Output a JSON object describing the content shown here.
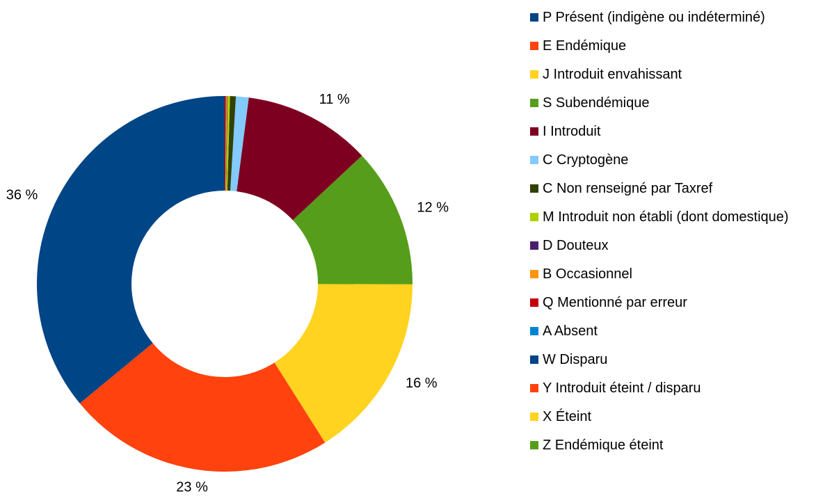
{
  "chart_data": {
    "type": "donut",
    "categories": [
      "P Présent (indigène ou indéterminé)",
      "E Endémique",
      "J Introduit envahissant",
      "S Subendémique",
      "I Introduit",
      "C Cryptogène",
      "C Non renseigné par Taxref",
      "M Introduit non établi (dont domestique)",
      "D Douteux",
      "B Occasionnel",
      "Q Mentionné par erreur",
      "A Absent",
      "W Disparu",
      "Y Introduit éteint / disparu",
      "X Éteint",
      "Z Endémique éteint"
    ],
    "values": [
      36,
      23,
      16,
      12,
      11,
      1.1,
      0.5,
      0.2,
      0.05,
      0.1,
      0.1,
      0,
      0,
      0,
      0,
      0
    ],
    "value_labels": [
      "36 %",
      "23 %",
      "16 %",
      "12 %",
      "11 %",
      null,
      null,
      null,
      null,
      null,
      null,
      null,
      null,
      null,
      null,
      null
    ],
    "colors": [
      "#004586",
      "#ff420e",
      "#ffd320",
      "#579d1c",
      "#7e0021",
      "#83caff",
      "#314004",
      "#aecf00",
      "#4b1f6f",
      "#ff950e",
      "#c5000b",
      "#0084d1",
      "#004586",
      "#ff420e",
      "#ffd320",
      "#579d1c"
    ],
    "legend": "right"
  }
}
